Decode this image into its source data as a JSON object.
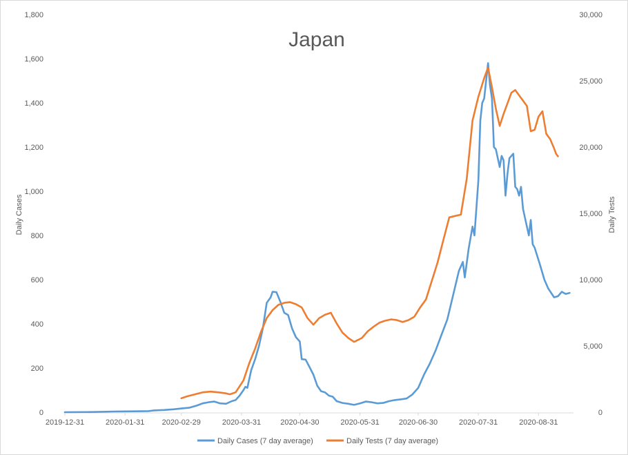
{
  "chart_data": {
    "type": "line",
    "title": "Japan",
    "xlabel": "",
    "ylabel": "Daily Cases",
    "y2label": "Daily Tests",
    "ylim": [
      0,
      1800
    ],
    "y2lim": [
      0,
      30000
    ],
    "yticks": [
      0,
      200,
      400,
      600,
      800,
      1000,
      1200,
      1400,
      1600,
      1800
    ],
    "yticklabels": [
      "0",
      "200",
      "400",
      "600",
      "800",
      "1,000",
      "1,200",
      "1,400",
      "1,600",
      "1,800"
    ],
    "y2ticks": [
      0,
      5000,
      10000,
      15000,
      20000,
      25000,
      30000
    ],
    "y2ticklabels": [
      "0",
      "5,000",
      "10,000",
      "15,000",
      "20,000",
      "25,000",
      "30,000"
    ],
    "xticklabels": [
      "2019-12-31",
      "2020-01-31",
      "2020-02-29",
      "2020-03-31",
      "2020-04-30",
      "2020-05-31",
      "2020-06-30",
      "2020-07-31",
      "2020-08-31"
    ],
    "x_start": "2019-12-31",
    "x_end": "2020-09-18",
    "grid": "none",
    "legend_position": "bottom",
    "series": [
      {
        "name": "Daily Cases (7 day average)",
        "axis": "left",
        "color": "#5B9BD5",
        "points": [
          [
            "2019-12-31",
            0
          ],
          [
            "2020-01-15",
            1
          ],
          [
            "2020-01-25",
            3
          ],
          [
            "2020-02-05",
            4
          ],
          [
            "2020-02-12",
            5
          ],
          [
            "2020-02-15",
            8
          ],
          [
            "2020-02-20",
            10
          ],
          [
            "2020-02-25",
            13
          ],
          [
            "2020-02-29",
            17
          ],
          [
            "2020-03-04",
            20
          ],
          [
            "2020-03-08",
            30
          ],
          [
            "2020-03-11",
            40
          ],
          [
            "2020-03-14",
            45
          ],
          [
            "2020-03-17",
            48
          ],
          [
            "2020-03-20",
            40
          ],
          [
            "2020-03-23",
            38
          ],
          [
            "2020-03-26",
            50
          ],
          [
            "2020-03-28",
            55
          ],
          [
            "2020-03-30",
            75
          ],
          [
            "2020-04-01",
            100
          ],
          [
            "2020-04-02",
            115
          ],
          [
            "2020-04-03",
            110
          ],
          [
            "2020-04-05",
            190
          ],
          [
            "2020-04-07",
            240
          ],
          [
            "2020-04-09",
            300
          ],
          [
            "2020-04-11",
            380
          ],
          [
            "2020-04-13",
            495
          ],
          [
            "2020-04-15",
            520
          ],
          [
            "2020-04-16",
            545
          ],
          [
            "2020-04-18",
            543
          ],
          [
            "2020-04-20",
            500
          ],
          [
            "2020-04-22",
            450
          ],
          [
            "2020-04-24",
            440
          ],
          [
            "2020-04-26",
            380
          ],
          [
            "2020-04-28",
            340
          ],
          [
            "2020-04-30",
            320
          ],
          [
            "2020-05-01",
            240
          ],
          [
            "2020-05-03",
            238
          ],
          [
            "2020-05-05",
            205
          ],
          [
            "2020-05-07",
            170
          ],
          [
            "2020-05-09",
            120
          ],
          [
            "2020-05-11",
            95
          ],
          [
            "2020-05-13",
            90
          ],
          [
            "2020-05-15",
            75
          ],
          [
            "2020-05-17",
            70
          ],
          [
            "2020-05-19",
            50
          ],
          [
            "2020-05-22",
            42
          ],
          [
            "2020-05-25",
            38
          ],
          [
            "2020-05-28",
            33
          ],
          [
            "2020-05-31",
            40
          ],
          [
            "2020-06-03",
            48
          ],
          [
            "2020-06-06",
            45
          ],
          [
            "2020-06-09",
            40
          ],
          [
            "2020-06-12",
            42
          ],
          [
            "2020-06-15",
            50
          ],
          [
            "2020-06-18",
            55
          ],
          [
            "2020-06-21",
            58
          ],
          [
            "2020-06-24",
            62
          ],
          [
            "2020-06-27",
            80
          ],
          [
            "2020-06-30",
            110
          ],
          [
            "2020-07-03",
            170
          ],
          [
            "2020-07-06",
            220
          ],
          [
            "2020-07-09",
            280
          ],
          [
            "2020-07-12",
            350
          ],
          [
            "2020-07-15",
            420
          ],
          [
            "2020-07-18",
            530
          ],
          [
            "2020-07-21",
            640
          ],
          [
            "2020-07-23",
            680
          ],
          [
            "2020-07-24",
            610
          ],
          [
            "2020-07-26",
            740
          ],
          [
            "2020-07-28",
            840
          ],
          [
            "2020-07-29",
            800
          ],
          [
            "2020-07-31",
            1050
          ],
          [
            "2020-08-01",
            1320
          ],
          [
            "2020-08-02",
            1400
          ],
          [
            "2020-08-03",
            1420
          ],
          [
            "2020-08-05",
            1580
          ],
          [
            "2020-08-06",
            1480
          ],
          [
            "2020-08-07",
            1420
          ],
          [
            "2020-08-08",
            1200
          ],
          [
            "2020-08-09",
            1190
          ],
          [
            "2020-08-11",
            1110
          ],
          [
            "2020-08-12",
            1160
          ],
          [
            "2020-08-13",
            1140
          ],
          [
            "2020-08-14",
            980
          ],
          [
            "2020-08-15",
            1080
          ],
          [
            "2020-08-16",
            1150
          ],
          [
            "2020-08-17",
            1160
          ],
          [
            "2020-08-18",
            1170
          ],
          [
            "2020-08-19",
            1020
          ],
          [
            "2020-08-20",
            1010
          ],
          [
            "2020-08-21",
            980
          ],
          [
            "2020-08-22",
            1020
          ],
          [
            "2020-08-23",
            920
          ],
          [
            "2020-08-24",
            880
          ],
          [
            "2020-08-26",
            800
          ],
          [
            "2020-08-27",
            870
          ],
          [
            "2020-08-28",
            760
          ],
          [
            "2020-08-29",
            745
          ],
          [
            "2020-09-01",
            660
          ],
          [
            "2020-09-03",
            600
          ],
          [
            "2020-09-05",
            560
          ],
          [
            "2020-09-08",
            520
          ],
          [
            "2020-09-10",
            525
          ],
          [
            "2020-09-12",
            545
          ],
          [
            "2020-09-14",
            535
          ],
          [
            "2020-09-16",
            540
          ]
        ]
      },
      {
        "name": "Daily Tests (7 day average)",
        "axis": "right",
        "color": "#ED7D31",
        "points": [
          [
            "2020-02-29",
            1050
          ],
          [
            "2020-03-03",
            1200
          ],
          [
            "2020-03-07",
            1350
          ],
          [
            "2020-03-11",
            1500
          ],
          [
            "2020-03-15",
            1550
          ],
          [
            "2020-03-19",
            1500
          ],
          [
            "2020-03-23",
            1420
          ],
          [
            "2020-03-25",
            1350
          ],
          [
            "2020-03-28",
            1500
          ],
          [
            "2020-04-01",
            2400
          ],
          [
            "2020-04-04",
            3700
          ],
          [
            "2020-04-07",
            4800
          ],
          [
            "2020-04-10",
            6050
          ],
          [
            "2020-04-13",
            7100
          ],
          [
            "2020-04-16",
            7700
          ],
          [
            "2020-04-19",
            8100
          ],
          [
            "2020-04-22",
            8250
          ],
          [
            "2020-04-25",
            8300
          ],
          [
            "2020-04-28",
            8150
          ],
          [
            "2020-05-01",
            7900
          ],
          [
            "2020-05-04",
            7100
          ],
          [
            "2020-05-07",
            6600
          ],
          [
            "2020-05-10",
            7100
          ],
          [
            "2020-05-13",
            7350
          ],
          [
            "2020-05-16",
            7500
          ],
          [
            "2020-05-19",
            6700
          ],
          [
            "2020-05-22",
            6000
          ],
          [
            "2020-05-25",
            5600
          ],
          [
            "2020-05-28",
            5300
          ],
          [
            "2020-06-01",
            5600
          ],
          [
            "2020-06-04",
            6100
          ],
          [
            "2020-06-07",
            6450
          ],
          [
            "2020-06-10",
            6750
          ],
          [
            "2020-06-13",
            6900
          ],
          [
            "2020-06-16",
            7000
          ],
          [
            "2020-06-19",
            6950
          ],
          [
            "2020-06-22",
            6800
          ],
          [
            "2020-06-25",
            6950
          ],
          [
            "2020-06-28",
            7200
          ],
          [
            "2020-07-01",
            7900
          ],
          [
            "2020-07-04",
            8500
          ],
          [
            "2020-07-07",
            9900
          ],
          [
            "2020-07-10",
            11300
          ],
          [
            "2020-07-13",
            13000
          ],
          [
            "2020-07-16",
            14700
          ],
          [
            "2020-07-19",
            14800
          ],
          [
            "2020-07-22",
            14900
          ],
          [
            "2020-07-25",
            17600
          ],
          [
            "2020-07-28",
            22000
          ],
          [
            "2020-07-31",
            23800
          ],
          [
            "2020-08-03",
            25200
          ],
          [
            "2020-08-05",
            26000
          ],
          [
            "2020-08-07",
            24500
          ],
          [
            "2020-08-09",
            22900
          ],
          [
            "2020-08-11",
            21600
          ],
          [
            "2020-08-13",
            22500
          ],
          [
            "2020-08-15",
            23300
          ],
          [
            "2020-08-17",
            24100
          ],
          [
            "2020-08-19",
            24300
          ],
          [
            "2020-08-21",
            23900
          ],
          [
            "2020-08-23",
            23500
          ],
          [
            "2020-08-25",
            23100
          ],
          [
            "2020-08-27",
            21200
          ],
          [
            "2020-08-29",
            21300
          ],
          [
            "2020-08-31",
            22300
          ],
          [
            "2020-09-02",
            22700
          ],
          [
            "2020-09-04",
            21000
          ],
          [
            "2020-09-06",
            20600
          ],
          [
            "2020-09-08",
            19900
          ],
          [
            "2020-09-09",
            19500
          ],
          [
            "2020-09-10",
            19300
          ]
        ]
      }
    ]
  }
}
